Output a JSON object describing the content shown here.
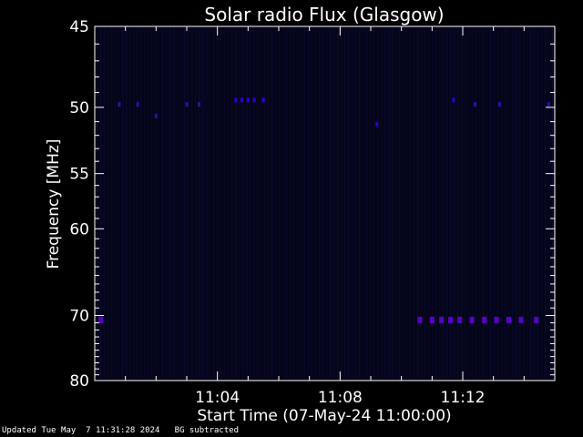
{
  "chart_data": {
    "type": "heatmap",
    "title": "Solar radio Flux (Glasgow)",
    "xlabel": "Start Time (07-May-24 11:00:00)",
    "ylabel": "Frequency [MHz]",
    "x_range_minutes": [
      0,
      15
    ],
    "y_range_mhz": [
      45,
      80
    ],
    "x_ticks": [
      {
        "minute": 4,
        "label": "11:04"
      },
      {
        "minute": 8,
        "label": "11:08"
      },
      {
        "minute": 12,
        "label": "11:12"
      }
    ],
    "y_ticks": [
      {
        "mhz": 45,
        "label": "45"
      },
      {
        "mhz": 50,
        "label": "50"
      },
      {
        "mhz": 55,
        "label": "55"
      },
      {
        "mhz": 60,
        "label": "60"
      },
      {
        "mhz": 70,
        "label": "70"
      },
      {
        "mhz": 80,
        "label": "80"
      }
    ],
    "grid": false,
    "colors": {
      "background": "#000000",
      "plot_background": "#05051a",
      "faint_column": "#0a0a2e",
      "low_signal": "#1a1aa8",
      "mid_signal": "#2b00d8",
      "high_signal": "#5a00c8",
      "axes": "#ffffff"
    },
    "signals": [
      {
        "x": 0.2,
        "y": 70.6,
        "level": "high"
      },
      {
        "x": 10.6,
        "y": 70.6,
        "level": "high"
      },
      {
        "x": 11.0,
        "y": 70.6,
        "level": "high"
      },
      {
        "x": 11.3,
        "y": 70.6,
        "level": "high"
      },
      {
        "x": 11.6,
        "y": 70.6,
        "level": "high"
      },
      {
        "x": 11.9,
        "y": 70.6,
        "level": "high"
      },
      {
        "x": 12.3,
        "y": 70.6,
        "level": "high"
      },
      {
        "x": 12.7,
        "y": 70.6,
        "level": "high"
      },
      {
        "x": 13.1,
        "y": 70.6,
        "level": "high"
      },
      {
        "x": 13.5,
        "y": 70.6,
        "level": "high"
      },
      {
        "x": 13.9,
        "y": 70.6,
        "level": "high"
      },
      {
        "x": 14.4,
        "y": 70.6,
        "level": "high"
      },
      {
        "x": 4.6,
        "y": 49.5,
        "level": "mid"
      },
      {
        "x": 4.8,
        "y": 49.5,
        "level": "mid"
      },
      {
        "x": 5.0,
        "y": 49.5,
        "level": "mid"
      },
      {
        "x": 5.2,
        "y": 49.5,
        "level": "mid"
      },
      {
        "x": 5.5,
        "y": 49.5,
        "level": "mid"
      },
      {
        "x": 9.2,
        "y": 51.2,
        "level": "mid"
      },
      {
        "x": 11.7,
        "y": 49.5,
        "level": "mid"
      },
      {
        "x": 2.0,
        "y": 50.6,
        "level": "low"
      },
      {
        "x": 0.8,
        "y": 49.8,
        "level": "low"
      },
      {
        "x": 1.4,
        "y": 49.8,
        "level": "low"
      },
      {
        "x": 3.0,
        "y": 49.8,
        "level": "low"
      },
      {
        "x": 3.4,
        "y": 49.8,
        "level": "low"
      },
      {
        "x": 12.4,
        "y": 49.8,
        "level": "low"
      },
      {
        "x": 13.2,
        "y": 49.8,
        "level": "low"
      },
      {
        "x": 14.8,
        "y": 49.8,
        "level": "low"
      }
    ]
  },
  "footer": {
    "updated": "Updated Tue May  7 11:31:28 2024",
    "mode": "BG subtracted"
  }
}
